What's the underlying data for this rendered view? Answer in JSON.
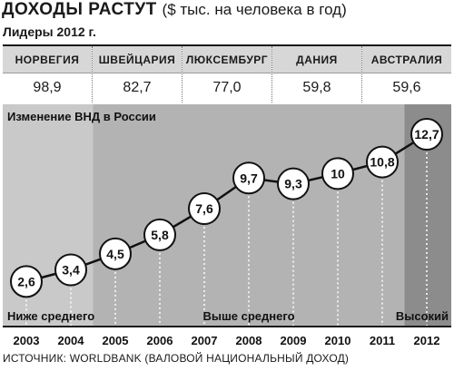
{
  "title": "ДОХОДЫ РАСТУТ",
  "subtitle": "($ тыс. на человека в год)",
  "leaders_label": "Лидеры 2012 г.",
  "leaders": [
    {
      "country": "НОРВЕГИЯ",
      "value": "98,9"
    },
    {
      "country": "ШВЕЙЦАРИЯ",
      "value": "82,7"
    },
    {
      "country": "ЛЮКСЕМБУРГ",
      "value": "77,0"
    },
    {
      "country": "ДАНИЯ",
      "value": "59,8"
    },
    {
      "country": "АВСТРАЛИЯ",
      "value": "59,6"
    }
  ],
  "chart_data": {
    "type": "line",
    "title": "Изменение ВНД в России",
    "categories": [
      "2003",
      "2004",
      "2005",
      "2006",
      "2007",
      "2008",
      "2009",
      "2010",
      "2011",
      "2012"
    ],
    "values": [
      2.6,
      3.4,
      4.5,
      5.8,
      7.6,
      9.7,
      9.3,
      10,
      10.8,
      12.7
    ],
    "value_labels": [
      "2,6",
      "3,4",
      "4,5",
      "5,8",
      "7,6",
      "9,7",
      "9,3",
      "10",
      "10,8",
      "12,7"
    ],
    "zones": [
      {
        "label": "Ниже среднего",
        "from": "2003",
        "to": "2004",
        "color": "#c9c9c9"
      },
      {
        "label": "Выше среднего",
        "from": "2005",
        "to": "2011",
        "color": "#b3b3b3"
      },
      {
        "label": "Высокий",
        "from": "2012",
        "to": "2012",
        "color": "#8c8c8c"
      }
    ],
    "ylim": [
      2,
      13.2
    ],
    "grid": "vertical dotted"
  },
  "source": "ИСТОЧНИК: WORLDBANK (ВАЛОВОЙ НАЦИОНАЛЬНЫЙ ДОХОД)"
}
